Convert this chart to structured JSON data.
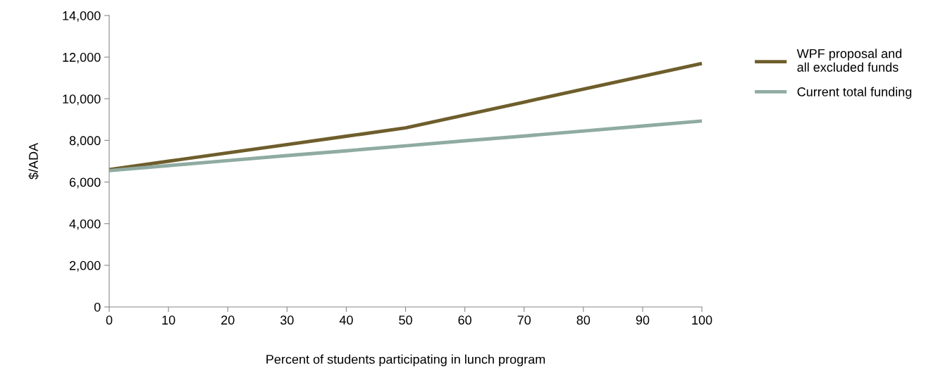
{
  "chart_data": {
    "type": "line",
    "xlabel": "Percent of students participating in lunch program",
    "ylabel": "$/ADA",
    "x": [
      0,
      10,
      20,
      30,
      40,
      50,
      60,
      70,
      80,
      90,
      100
    ],
    "series": [
      {
        "name": "WPF proposal and\nall excluded funds",
        "color": "#6e5e2c",
        "values": [
          6600,
          7000,
          7400,
          7800,
          8200,
          8600,
          9220,
          9840,
          10460,
          11080,
          11700
        ]
      },
      {
        "name": "Current total funding",
        "color": "#8faba2",
        "values": [
          6550,
          6790,
          7030,
          7270,
          7500,
          7740,
          7980,
          8210,
          8450,
          8690,
          8930
        ]
      }
    ],
    "xlim": [
      0,
      100
    ],
    "xticks": [
      0,
      10,
      20,
      30,
      40,
      50,
      60,
      70,
      80,
      90,
      100
    ],
    "ylim": [
      0,
      14000
    ],
    "yticks": [
      {
        "value": 0,
        "label": "0"
      },
      {
        "value": 2000,
        "label": "2,000"
      },
      {
        "value": 4000,
        "label": "4,000"
      },
      {
        "value": 6000,
        "label": "6,000"
      },
      {
        "value": 8000,
        "label": "8,000"
      },
      {
        "value": 10000,
        "label": "10,000"
      },
      {
        "value": 12000,
        "label": "12,000"
      },
      {
        "value": 14000,
        "label": "14,000"
      }
    ],
    "grid": false,
    "legend": "right",
    "marker": "none",
    "line_style": "solid"
  }
}
